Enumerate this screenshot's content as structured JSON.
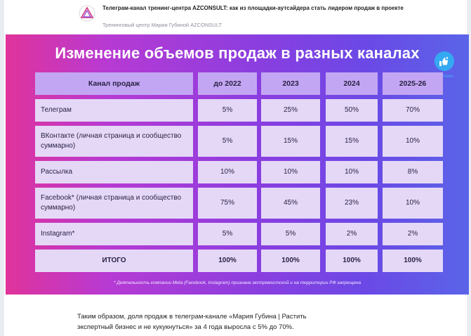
{
  "header": {
    "title": "Телеграм-канал тренинг-центра AZCONSULT: как из площадки-аутсайдера стать лидером продаж в проекте",
    "source": "Тренинговый центр Марии Губиной AZCONSULT"
  },
  "banner": {
    "title": "Изменение объемов продаж в разных каналах",
    "like_label": "Полезно",
    "footnote": "* Деятельность компании Meta (Facebook, Instagram) признана экстремистской и на территории РФ запрещена"
  },
  "table": {
    "columns": [
      "Канал продаж",
      "до 2022",
      "2023",
      "2024",
      "2025-26"
    ],
    "rows": [
      {
        "channel": "Телеграм",
        "values": [
          "5%",
          "25%",
          "50%",
          "70%"
        ]
      },
      {
        "channel": "ВКонтакте (личная страница и сообщество суммарно)",
        "values": [
          "5%",
          "15%",
          "15%",
          "10%"
        ]
      },
      {
        "channel": "Рассылка",
        "values": [
          "10%",
          "10%",
          "10%",
          "8%"
        ]
      },
      {
        "channel": "Facebook* (личная страница и сообщество суммарно)",
        "values": [
          "75%",
          "45%",
          "23%",
          "10%"
        ]
      },
      {
        "channel": "Instagram*",
        "values": [
          "5%",
          "5%",
          "2%",
          "2%"
        ]
      }
    ],
    "total": {
      "label": "ИТОГО",
      "values": [
        "100%",
        "100%",
        "100%",
        "100%"
      ]
    }
  },
  "article": {
    "text": "Таким образом, доля продаж в телеграм-канале «Мария Губина | Растить экспертный бизнес и не кукукнуться» за 4 года выросла с 5% до 70%."
  },
  "colors": {
    "gradient_start": "#e0339b",
    "gradient_end": "#5a64e8",
    "header_cell": "#c3a6f3",
    "body_cell": "#e5d8f7",
    "like_button": "#35a8f2"
  }
}
